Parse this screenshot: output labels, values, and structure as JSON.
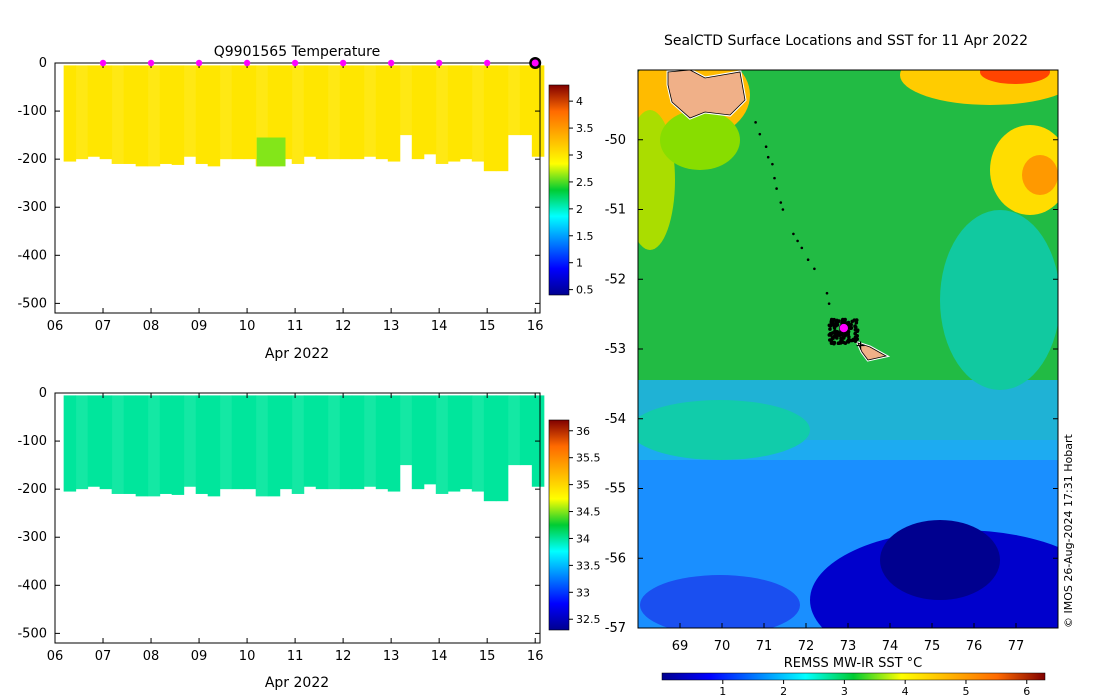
{
  "chart_data": [
    {
      "type": "heatmap",
      "title": "Q9901565  Temperature",
      "xlabel": "Apr 2022",
      "ylabel": "",
      "x_ticks": [
        "06",
        "07",
        "08",
        "09",
        "10",
        "11",
        "12",
        "13",
        "14",
        "15",
        "16"
      ],
      "xlim": [
        6,
        16.1
      ],
      "ylim": [
        -520,
        0
      ],
      "y_ticks": [
        0,
        -100,
        -200,
        -300,
        -400,
        -500
      ],
      "colorbar": {
        "ticks": [
          0.5,
          1,
          1.5,
          2,
          2.5,
          3,
          3.5,
          4
        ],
        "range": [
          0.4,
          4.3
        ],
        "colormap": "jet"
      },
      "profile_value": 3.0,
      "profile_depths": [
        {
          "day": 6.3,
          "depth": -205
        },
        {
          "day": 6.55,
          "depth": -200
        },
        {
          "day": 6.8,
          "depth": -195
        },
        {
          "day": 7.05,
          "depth": -200
        },
        {
          "day": 7.3,
          "depth": -210
        },
        {
          "day": 7.55,
          "depth": -210
        },
        {
          "day": 7.8,
          "depth": -215
        },
        {
          "day": 8.05,
          "depth": -215
        },
        {
          "day": 8.3,
          "depth": -210
        },
        {
          "day": 8.55,
          "depth": -212
        },
        {
          "day": 8.8,
          "depth": -195
        },
        {
          "day": 9.05,
          "depth": -210
        },
        {
          "day": 9.3,
          "depth": -215
        },
        {
          "day": 9.55,
          "depth": -200
        },
        {
          "day": 9.8,
          "depth": -200
        },
        {
          "day": 10.05,
          "depth": -200
        },
        {
          "day": 10.3,
          "depth": -215
        },
        {
          "day": 10.55,
          "depth": -215
        },
        {
          "day": 10.8,
          "depth": -200
        },
        {
          "day": 11.05,
          "depth": -210
        },
        {
          "day": 11.3,
          "depth": -195
        },
        {
          "day": 11.55,
          "depth": -200
        },
        {
          "day": 11.8,
          "depth": -200
        },
        {
          "day": 12.05,
          "depth": -200
        },
        {
          "day": 12.3,
          "depth": -200
        },
        {
          "day": 12.55,
          "depth": -195
        },
        {
          "day": 12.8,
          "depth": -200
        },
        {
          "day": 13.05,
          "depth": -205
        },
        {
          "day": 13.3,
          "depth": -150
        },
        {
          "day": 13.55,
          "depth": -200
        },
        {
          "day": 13.8,
          "depth": -190
        },
        {
          "day": 14.05,
          "depth": -210
        },
        {
          "day": 14.3,
          "depth": -205
        },
        {
          "day": 14.55,
          "depth": -200
        },
        {
          "day": 14.8,
          "depth": -205
        },
        {
          "day": 15.05,
          "depth": -225
        },
        {
          "day": 15.3,
          "depth": -225
        },
        {
          "day": 15.55,
          "depth": -150
        },
        {
          "day": 15.8,
          "depth": -150
        },
        {
          "day": 16.05,
          "depth": -195
        }
      ],
      "highlight_patch": {
        "day_start": 10.2,
        "day_end": 10.8,
        "depth_top": -155,
        "depth_bottom": -215,
        "value": 2.6
      },
      "surface_markers": [
        7,
        8,
        9,
        10,
        11,
        12,
        13,
        14,
        15,
        16
      ],
      "current_marker": 16,
      "marker_color": "#ff00ff"
    },
    {
      "type": "heatmap",
      "title": "",
      "xlabel": "Apr 2022",
      "ylabel": "",
      "x_ticks": [
        "06",
        "07",
        "08",
        "09",
        "10",
        "11",
        "12",
        "13",
        "14",
        "15",
        "16"
      ],
      "xlim": [
        6,
        16.1
      ],
      "ylim": [
        -520,
        0
      ],
      "y_ticks": [
        0,
        -100,
        -200,
        -300,
        -400,
        -500
      ],
      "colorbar": {
        "ticks": [
          32.5,
          33,
          33.5,
          34,
          34.5,
          35,
          35.5,
          36
        ],
        "range": [
          32.3,
          36.2
        ],
        "colormap": "jet"
      },
      "profile_value": 34.0
    },
    {
      "type": "heatmap",
      "title": "SealCTD Surface Locations and SST for 11 Apr 2022",
      "xlabel": "",
      "ylabel": "",
      "x_ticks": [
        69,
        70,
        71,
        72,
        73,
        74,
        75,
        76,
        77
      ],
      "y_ticks": [
        -50,
        -51,
        -52,
        -53,
        -54,
        -55,
        -56,
        -57
      ],
      "xlim": [
        68.0,
        78.0
      ],
      "ylim": [
        -57.0,
        -49.0
      ],
      "colorbar": {
        "label": "REMSS MW-IR SST °C",
        "ticks": [
          1,
          2,
          3,
          4,
          5,
          6
        ],
        "range": [
          0.0,
          6.3
        ],
        "colormap": "jet"
      },
      "track": [
        [
          70.8,
          -49.75
        ],
        [
          70.9,
          -49.92
        ],
        [
          71.05,
          -50.1
        ],
        [
          71.1,
          -50.25
        ],
        [
          71.2,
          -50.35
        ],
        [
          71.25,
          -50.55
        ],
        [
          71.3,
          -50.7
        ],
        [
          71.4,
          -50.9
        ],
        [
          71.45,
          -51.0
        ],
        [
          71.7,
          -51.35
        ],
        [
          71.8,
          -51.45
        ],
        [
          71.9,
          -51.55
        ],
        [
          72.05,
          -51.72
        ],
        [
          72.2,
          -51.85
        ],
        [
          72.5,
          -52.2
        ],
        [
          72.55,
          -52.35
        ]
      ],
      "cluster_center": [
        72.9,
        -52.75
      ],
      "current_position": [
        72.9,
        -52.7
      ],
      "base_marker": [
        73.3,
        -52.95
      ],
      "attribution": "© IMOS 26-Aug-2024 17:31 Hobart"
    }
  ]
}
